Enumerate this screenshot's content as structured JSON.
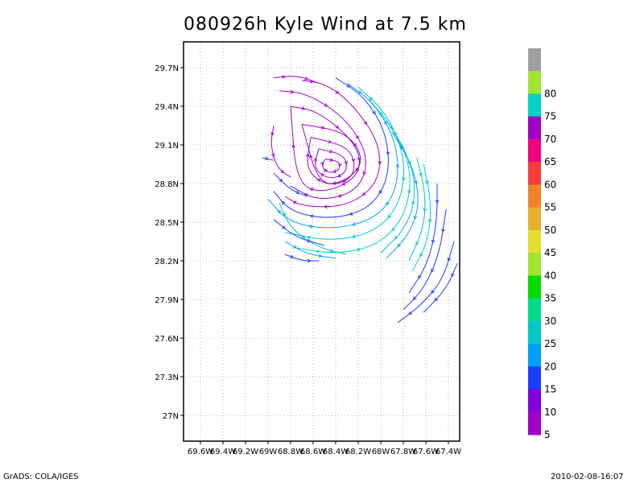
{
  "title": "080926h Kyle Wind at 7.5 km",
  "footer": {
    "left": "GrADS: COLA/IGES",
    "right": "2010-02-08-16:07"
  },
  "chart_data": {
    "type": "streamline",
    "title": "080926h Kyle Wind at 7.5 km",
    "xlabel": "",
    "ylabel": "",
    "xlim": [
      -69.75,
      -67.3
    ],
    "ylim": [
      26.8,
      29.9
    ],
    "xticks": [
      {
        "value": -69.6,
        "label": "69.6W"
      },
      {
        "value": -69.4,
        "label": "69.4W"
      },
      {
        "value": -69.2,
        "label": "69.2W"
      },
      {
        "value": -69.0,
        "label": "69W"
      },
      {
        "value": -68.8,
        "label": "68.8W"
      },
      {
        "value": -68.6,
        "label": "68.6W"
      },
      {
        "value": -68.4,
        "label": "68.4W"
      },
      {
        "value": -68.2,
        "label": "68.2W"
      },
      {
        "value": -68.0,
        "label": "68W"
      },
      {
        "value": -67.8,
        "label": "67.8W"
      },
      {
        "value": -67.6,
        "label": "67.6W"
      },
      {
        "value": -67.4,
        "label": "67.4W"
      }
    ],
    "yticks": [
      {
        "value": 29.7,
        "label": "29.7N"
      },
      {
        "value": 29.4,
        "label": "29.4N"
      },
      {
        "value": 29.1,
        "label": "29.1N"
      },
      {
        "value": 28.8,
        "label": "28.8N"
      },
      {
        "value": 28.5,
        "label": "28.5N"
      },
      {
        "value": 28.2,
        "label": "28.2N"
      },
      {
        "value": 27.9,
        "label": "27.9N"
      },
      {
        "value": 27.6,
        "label": "27.6N"
      },
      {
        "value": 27.3,
        "label": "27.3N"
      },
      {
        "value": 27.0,
        "label": "27N"
      }
    ],
    "grid": true,
    "vortex_center": {
      "lon": -68.42,
      "lat": 28.93
    },
    "colorbar": {
      "placement": "right",
      "levels": [
        {
          "label": "",
          "color": "#a0a0a0"
        },
        {
          "label": "80",
          "color": "#a0e632"
        },
        {
          "label": "75",
          "color": "#00d2c8"
        },
        {
          "label": "70",
          "color": "#a000c8"
        },
        {
          "label": "65",
          "color": "#f00082"
        },
        {
          "label": "60",
          "color": "#fa3c3c"
        },
        {
          "label": "55",
          "color": "#f08228"
        },
        {
          "label": "50",
          "color": "#e6af2d"
        },
        {
          "label": "45",
          "color": "#e6dc32"
        },
        {
          "label": "40",
          "color": "#a0e632"
        },
        {
          "label": "35",
          "color": "#00dc00"
        },
        {
          "label": "30",
          "color": "#00dc8c"
        },
        {
          "label": "25",
          "color": "#00c8c8"
        },
        {
          "label": "20",
          "color": "#00a0ff"
        },
        {
          "label": "15",
          "color": "#1e3cff"
        },
        {
          "label": "10",
          "color": "#8200dc"
        },
        {
          "label": "5",
          "color": "#a000c8"
        }
      ]
    },
    "streamlines": [
      {
        "color": "#a000c8",
        "points": [
          [
            -68.49,
            28.99
          ],
          [
            -68.36,
            28.97
          ],
          [
            -68.37,
            28.9
          ],
          [
            -68.47,
            28.88
          ],
          [
            -68.53,
            28.94
          ],
          [
            -68.49,
            28.99
          ]
        ]
      },
      {
        "color": "#a000c8",
        "points": [
          [
            -68.55,
            29.07
          ],
          [
            -68.31,
            29.02
          ],
          [
            -68.3,
            28.88
          ],
          [
            -68.46,
            28.83
          ],
          [
            -68.6,
            28.92
          ],
          [
            -68.55,
            29.07
          ]
        ]
      },
      {
        "color": "#a000c8",
        "points": [
          [
            -68.62,
            29.16
          ],
          [
            -68.26,
            29.08
          ],
          [
            -68.22,
            28.86
          ],
          [
            -68.45,
            28.77
          ],
          [
            -68.67,
            28.9
          ],
          [
            -68.62,
            29.16
          ]
        ]
      },
      {
        "color": "#a000c8",
        "points": [
          [
            -68.7,
            29.26
          ],
          [
            -68.3,
            29.2
          ],
          [
            -68.14,
            28.98
          ],
          [
            -68.3,
            28.82
          ],
          [
            -68.55,
            28.78
          ],
          [
            -68.7,
            29.26
          ]
        ]
      },
      {
        "color": "#a000c8",
        "points": [
          [
            -68.8,
            29.4
          ],
          [
            -68.55,
            29.36
          ],
          [
            -68.2,
            29.1
          ],
          [
            -68.18,
            28.86
          ],
          [
            -68.5,
            28.72
          ],
          [
            -68.75,
            28.8
          ],
          [
            -68.8,
            29.4
          ]
        ]
      },
      {
        "color": "#a000c8",
        "points": [
          [
            -68.9,
            29.52
          ],
          [
            -68.65,
            29.5
          ],
          [
            -68.3,
            29.3
          ],
          [
            -68.1,
            29.0
          ],
          [
            -68.2,
            28.74
          ],
          [
            -68.55,
            28.66
          ],
          [
            -68.8,
            28.78
          ]
        ]
      },
      {
        "color": "#a000c8",
        "points": [
          [
            -68.95,
            29.25
          ],
          [
            -68.98,
            29.1
          ],
          [
            -68.92,
            28.92
          ],
          [
            -68.8,
            28.85
          ]
        ]
      },
      {
        "color": "#a000c8",
        "points": [
          [
            -68.7,
            29.6
          ],
          [
            -68.5,
            29.58
          ],
          [
            -68.25,
            29.42
          ],
          [
            -68.0,
            29.1
          ],
          [
            -68.02,
            28.8
          ],
          [
            -68.3,
            28.62
          ],
          [
            -68.7,
            28.62
          ],
          [
            -68.85,
            28.7
          ]
        ]
      },
      {
        "color": "#1e3cff",
        "points": [
          [
            -68.4,
            29.62
          ],
          [
            -68.15,
            29.48
          ],
          [
            -67.95,
            29.2
          ],
          [
            -67.92,
            28.85
          ],
          [
            -68.1,
            28.6
          ],
          [
            -68.45,
            28.52
          ],
          [
            -68.8,
            28.58
          ],
          [
            -68.95,
            28.74
          ]
        ]
      },
      {
        "color": "#00a0ff",
        "points": [
          [
            -68.3,
            29.58
          ],
          [
            -68.05,
            29.42
          ],
          [
            -67.85,
            29.1
          ],
          [
            -67.85,
            28.75
          ],
          [
            -68.05,
            28.52
          ],
          [
            -68.45,
            28.44
          ],
          [
            -68.82,
            28.5
          ],
          [
            -69.0,
            28.68
          ]
        ]
      },
      {
        "color": "#00c8c8",
        "points": [
          [
            -68.2,
            29.55
          ],
          [
            -67.95,
            29.35
          ],
          [
            -67.78,
            29.0
          ],
          [
            -67.82,
            28.65
          ],
          [
            -68.05,
            28.42
          ],
          [
            -68.45,
            28.35
          ],
          [
            -68.85,
            28.42
          ]
        ]
      },
      {
        "color": "#00d2c8",
        "points": [
          [
            -68.1,
            29.45
          ],
          [
            -67.88,
            29.22
          ],
          [
            -67.72,
            28.9
          ],
          [
            -67.78,
            28.55
          ],
          [
            -68.02,
            28.32
          ],
          [
            -68.4,
            28.25
          ],
          [
            -68.75,
            28.3
          ]
        ]
      },
      {
        "color": "#00c8c8",
        "points": [
          [
            -68.0,
            29.35
          ],
          [
            -67.8,
            29.1
          ],
          [
            -67.68,
            28.8
          ],
          [
            -67.75,
            28.48
          ],
          [
            -68.0,
            28.26
          ]
        ]
      },
      {
        "color": "#00a0ff",
        "points": [
          [
            -67.9,
            29.2
          ],
          [
            -67.72,
            28.95
          ],
          [
            -67.65,
            28.65
          ],
          [
            -67.75,
            28.4
          ],
          [
            -67.95,
            28.22
          ]
        ]
      },
      {
        "color": "#00c8c8",
        "points": [
          [
            -67.68,
            29.0
          ],
          [
            -67.6,
            28.72
          ],
          [
            -67.62,
            28.45
          ],
          [
            -67.75,
            28.2
          ]
        ]
      },
      {
        "color": "#00d2c8",
        "points": [
          [
            -67.62,
            28.95
          ],
          [
            -67.55,
            28.65
          ],
          [
            -67.58,
            28.35
          ],
          [
            -67.72,
            28.12
          ]
        ]
      },
      {
        "color": "#1e3cff",
        "points": [
          [
            -67.5,
            28.8
          ],
          [
            -67.5,
            28.5
          ],
          [
            -67.58,
            28.18
          ],
          [
            -67.75,
            27.95
          ]
        ]
      },
      {
        "color": "#1e3cff",
        "points": [
          [
            -67.42,
            28.6
          ],
          [
            -67.48,
            28.25
          ],
          [
            -67.62,
            27.98
          ],
          [
            -67.8,
            27.82
          ]
        ]
      },
      {
        "color": "#1e3cff",
        "points": [
          [
            -67.35,
            28.35
          ],
          [
            -67.45,
            28.05
          ],
          [
            -67.65,
            27.85
          ],
          [
            -67.85,
            27.72
          ]
        ]
      },
      {
        "color": "#1e3cff",
        "points": [
          [
            -67.32,
            28.18
          ],
          [
            -67.42,
            27.98
          ],
          [
            -67.62,
            27.8
          ]
        ]
      },
      {
        "color": "#00c8c8",
        "points": [
          [
            -68.9,
            28.65
          ],
          [
            -68.8,
            28.45
          ],
          [
            -68.55,
            28.3
          ],
          [
            -68.3,
            28.25
          ]
        ]
      },
      {
        "color": "#00a0ff",
        "points": [
          [
            -68.85,
            28.35
          ],
          [
            -68.65,
            28.25
          ],
          [
            -68.4,
            28.22
          ]
        ]
      },
      {
        "color": "#1e3cff",
        "points": [
          [
            -68.95,
            28.88
          ],
          [
            -68.8,
            28.75
          ],
          [
            -68.65,
            28.7
          ]
        ]
      },
      {
        "color": "#1e3cff",
        "points": [
          [
            -68.95,
            28.52
          ],
          [
            -68.75,
            28.38
          ],
          [
            -68.5,
            28.32
          ]
        ]
      },
      {
        "color": "#1e3cff",
        "points": [
          [
            -68.85,
            28.25
          ],
          [
            -68.7,
            28.2
          ],
          [
            -68.55,
            28.2
          ]
        ]
      },
      {
        "color": "#1e3cff",
        "points": [
          [
            -69.05,
            29.0
          ],
          [
            -68.95,
            28.98
          ]
        ]
      },
      {
        "color": "#a000c8",
        "points": [
          [
            -68.95,
            29.62
          ],
          [
            -68.75,
            29.64
          ],
          [
            -68.55,
            29.58
          ]
        ]
      }
    ]
  }
}
